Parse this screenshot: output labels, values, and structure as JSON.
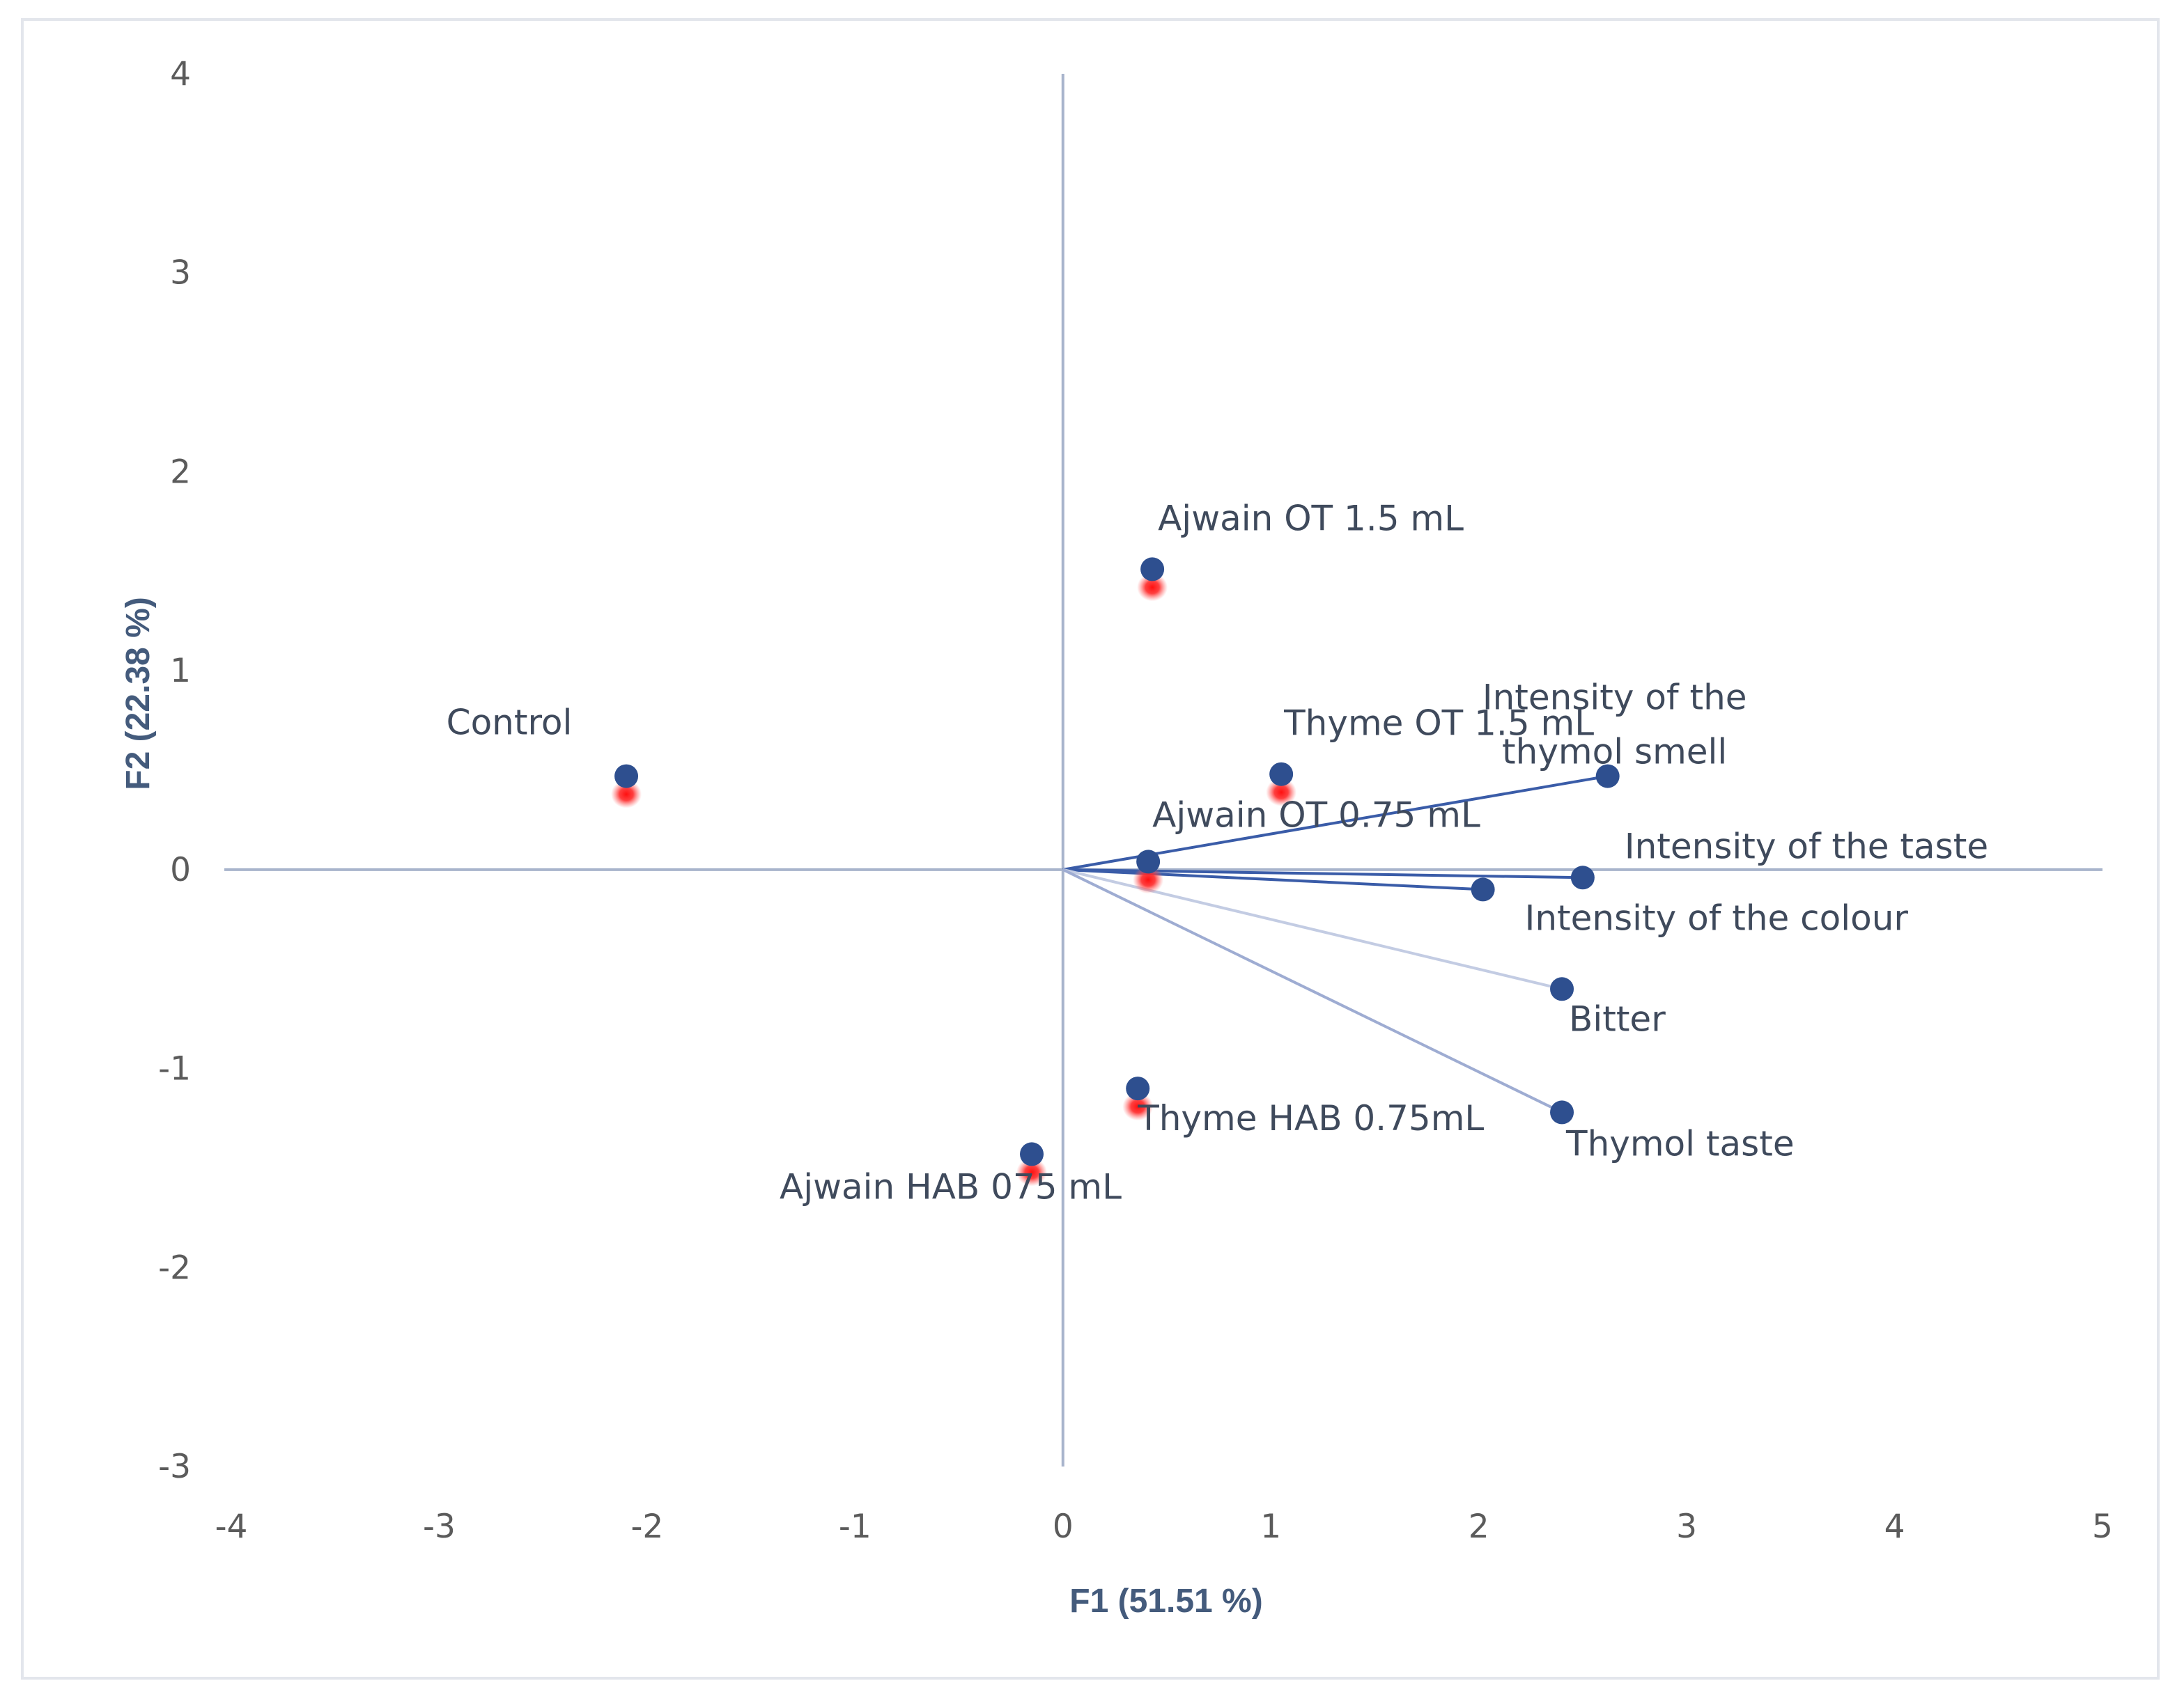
{
  "chart_data": {
    "type": "scatter",
    "subtype": "pca-biplot",
    "title": "",
    "xlabel": "F1 (51.51 %)",
    "ylabel": "F2 (22.38 %)",
    "xlim": [
      -4,
      5
    ],
    "ylim": [
      -3,
      4
    ],
    "xticks": [
      -4,
      -3,
      -2,
      -1,
      0,
      1,
      2,
      3,
      4,
      5
    ],
    "yticks": [
      -3,
      -2,
      -1,
      0,
      1,
      2,
      3,
      4
    ],
    "grid": false,
    "series": [
      {
        "name": "Observations",
        "color": "#2e4f8f",
        "highlight_color": "#ff2a2a",
        "points": [
          {
            "label": "Control",
            "x": -2.1,
            "y": 0.47
          },
          {
            "label": "Ajwain OT 1.5 mL",
            "x": 0.43,
            "y": 1.51
          },
          {
            "label": "Thyme OT 1.5 mL",
            "x": 1.05,
            "y": 0.48
          },
          {
            "label": "Ajwain OT 0.75 mL",
            "x": 0.41,
            "y": 0.04
          },
          {
            "label": "Thyme HAB 0.75mL",
            "x": 0.36,
            "y": -1.1
          },
          {
            "label": "Ajwain HAB 075 mL",
            "x": -0.15,
            "y": -1.43
          }
        ]
      },
      {
        "name": "Variables",
        "color": "#2e4f8f",
        "points": [
          {
            "label": "Intensity of the thymol smell",
            "label_lines": [
              "Intensity of the",
              "thymol smell"
            ],
            "x": 2.62,
            "y": 0.47,
            "line_color": "#3a5ca8"
          },
          {
            "label": "Intensity of the taste",
            "x": 2.5,
            "y": -0.04,
            "line_color": "#3a5ca8"
          },
          {
            "label": "Intensity of the colour",
            "x": 2.02,
            "y": -0.1,
            "line_color": "#3a5ca8"
          },
          {
            "label": "Bitter",
            "x": 2.4,
            "y": -0.6,
            "line_color": "#c3cce3"
          },
          {
            "label": "Thymol taste",
            "x": 2.4,
            "y": -1.22,
            "line_color": "#9eacd2"
          }
        ]
      }
    ]
  }
}
